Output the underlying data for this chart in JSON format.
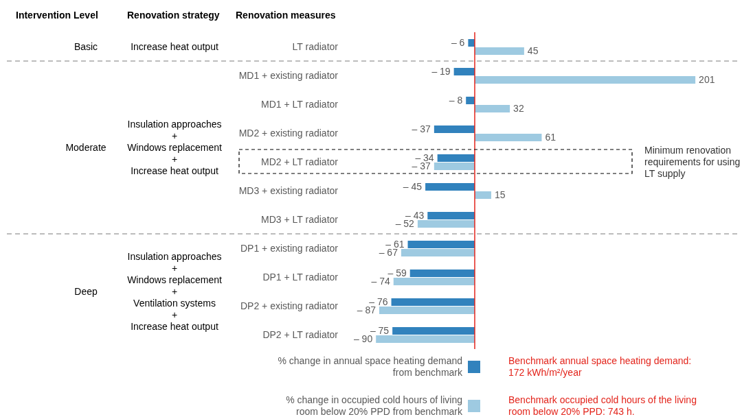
{
  "chart_data": {
    "type": "bar",
    "orientation": "horizontal",
    "ylabel": "Renovation measures",
    "categories": [
      "LT radiator",
      "MD1 + existing radiator",
      "MD1 + LT radiator",
      "MD2 + existing radiator",
      "MD2 + LT radiator",
      "MD3 + existing radiator",
      "MD3 + LT radiator",
      "DP1 + existing radiator",
      "DP1 + LT radiator",
      "DP2 + existing radiator",
      "DP2 + LT radiator"
    ],
    "series": [
      {
        "name": "% change in annual space heating demand from benchmark",
        "color": "#3182bd",
        "values": [
          -6,
          -19,
          -8,
          -37,
          -34,
          -45,
          -43,
          -61,
          -59,
          -76,
          -75
        ],
        "value_labels": [
          "– 6",
          "– 19",
          "– 8",
          "– 37",
          "– 34",
          "– 45",
          "– 43",
          "– 61",
          "– 59",
          "– 76",
          "– 75"
        ]
      },
      {
        "name": "% change in occupied cold hours of living room below 20% PPD from benchmark",
        "color": "#9ecae1",
        "values": [
          45,
          201,
          32,
          61,
          -37,
          15,
          -52,
          -67,
          -74,
          -87,
          -90
        ],
        "value_labels": [
          "45",
          "201",
          "32",
          "61",
          "– 37",
          "15",
          "– 52",
          "– 67",
          "– 74",
          "– 87",
          "– 90"
        ]
      }
    ],
    "ref_lines": [
      {
        "axis": "x",
        "value": 0,
        "color": "#e3241b"
      }
    ],
    "annotations": [
      "Intervention Level",
      "Renovation strategy",
      "Basic",
      "Moderate",
      "Deep",
      "Increase heat output",
      "Insulation approaches\n+\nWindows replacement\n+\nIncrease heat output",
      "Insulation approaches\n+\nWindows replacement\n+\nVentilation systems\n+\nIncrease heat output",
      "Minimum renovation requirements for using LT supply",
      "Benchmark annual space heating demand: 172 kWh/m²/year",
      "Benchmark occupied cold hours of the living room below 20% PPD: 743 h."
    ],
    "legend": "bottom"
  }
}
